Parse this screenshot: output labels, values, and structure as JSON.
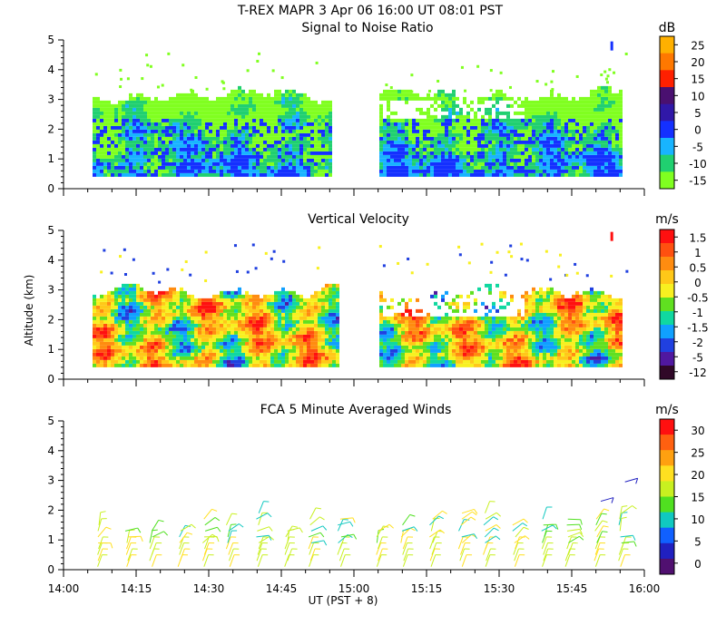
{
  "title": "T-REX  MAPR  3 Apr 06  16:00 UT  08:01  PST",
  "x_axis": {
    "label": "UT  (PST + 8)",
    "ticks": [
      "14:00",
      "14:15",
      "14:30",
      "14:45",
      "15:00",
      "15:15",
      "15:30",
      "15:45",
      "16:00"
    ]
  },
  "y_axis": {
    "label": "Altitude (km)",
    "ticks": [
      "0",
      "1",
      "2",
      "3",
      "4",
      "5"
    ]
  },
  "chart_data": [
    {
      "type": "heatmap",
      "title": "Signal to Noise Ratio",
      "xlabel": "UT  (PST + 8)",
      "ylabel": "Altitude (km)",
      "xlim_minutes_after_1400": [
        0,
        120
      ],
      "ylim_km": [
        0,
        5
      ],
      "colorbar": {
        "unit": "dB",
        "ticks": [
          "25",
          "20",
          "15",
          "10",
          "5",
          "0",
          "-5",
          "-10",
          "-15"
        ],
        "colors": [
          "#ffb000",
          "#ff7800",
          "#ff2000",
          "#4a1070",
          "#3018a8",
          "#1430ff",
          "#18b4ff",
          "#20d070",
          "#80ff20"
        ]
      },
      "data_extent": {
        "alt_min_km": 0.4,
        "alt_top_km": 3.2,
        "gap_minutes": [
          55,
          65
        ],
        "data_minutes": [
          6,
          115
        ]
      }
    },
    {
      "type": "heatmap",
      "title": "Vertical Velocity",
      "xlabel": "UT  (PST + 8)",
      "ylabel": "Altitude (km)",
      "xlim_minutes_after_1400": [
        0,
        120
      ],
      "ylim_km": [
        0,
        5
      ],
      "colorbar": {
        "unit": "m/s",
        "ticks": [
          "1.5",
          "1",
          "0.5",
          "0",
          "-0.5",
          "-1",
          "-1.5",
          "-2",
          "-5",
          "-12"
        ],
        "colors": [
          "#ff1010",
          "#ff5010",
          "#ff8c10",
          "#ffc818",
          "#f8f020",
          "#60e020",
          "#10d8a0",
          "#10a0ff",
          "#2040e0",
          "#5018a0",
          "#300828"
        ]
      },
      "data_extent": {
        "alt_min_km": 0.4,
        "alt_top_km": 3.0,
        "gap_minutes": [
          57,
          65
        ],
        "data_minutes": [
          6,
          115
        ]
      }
    },
    {
      "type": "scatter",
      "title": "FCA 5 Minute Averaged Winds",
      "xlabel": "UT  (PST + 8)",
      "ylabel": "Altitude (km)",
      "xlim_minutes_after_1400": [
        0,
        120
      ],
      "ylim_km": [
        0,
        5
      ],
      "marker": "wind-barb",
      "colorbar": {
        "unit": "m/s",
        "ticks": [
          "30",
          "25",
          "20",
          "15",
          "10",
          "5",
          "0"
        ],
        "colors": [
          "#ff1010",
          "#ff6010",
          "#ffa010",
          "#ffe020",
          "#c8f020",
          "#50e020",
          "#10c8c0",
          "#1060ff",
          "#2020c0",
          "#501070"
        ]
      },
      "barb_times_minutes": [
        7,
        13,
        18,
        24,
        29,
        34,
        40,
        46,
        51,
        57,
        65,
        70,
        76,
        82,
        87,
        93,
        99,
        104,
        110,
        115
      ],
      "barb_altitudes_km": [
        0.1,
        0.3,
        0.5,
        0.7,
        0.9,
        1.1,
        1.3,
        1.5,
        1.7,
        1.9,
        2.1,
        2.3,
        2.5,
        2.7,
        2.9
      ]
    }
  ]
}
